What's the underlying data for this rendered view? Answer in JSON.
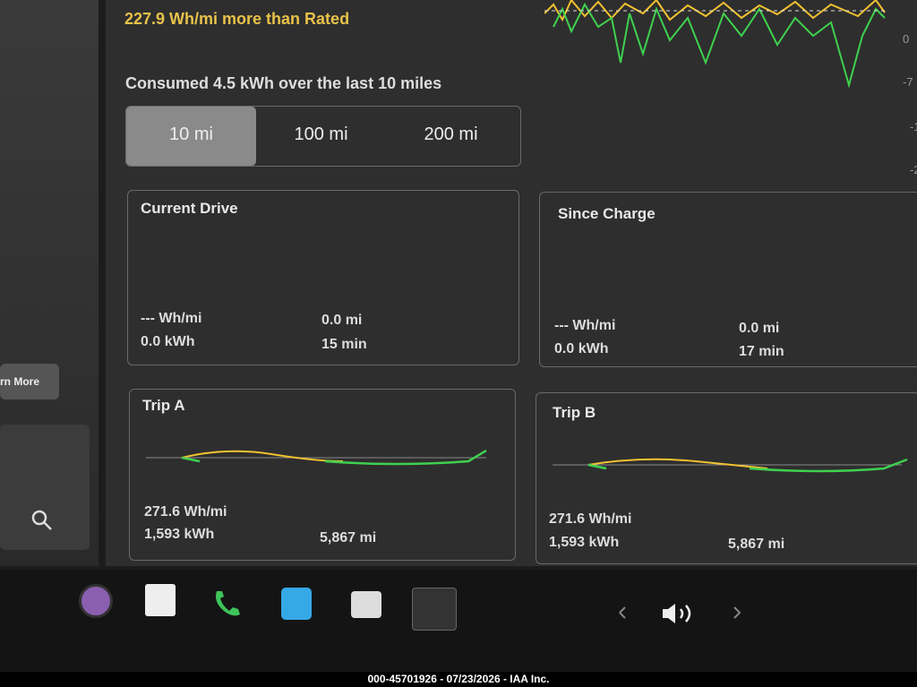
{
  "header": {
    "rated_delta": "227.9 Wh/mi more than Rated",
    "axis_labels": [
      "0",
      "-7",
      "-1,",
      "-2,"
    ]
  },
  "consumption": {
    "summary": "Consumed 4.5 kWh over the last 10 miles",
    "tabs": [
      "10 mi",
      "100 mi",
      "200 mi"
    ]
  },
  "cards": [
    {
      "title": "Current Drive",
      "efficiency": "--- Wh/mi",
      "energy": "0.0 kWh",
      "distance": "0.0 mi",
      "time": "15 min"
    },
    {
      "title": "Since Charge",
      "efficiency": "--- Wh/mi",
      "energy": "0.0 kWh",
      "distance": "0.0 mi",
      "time": "17 min"
    },
    {
      "title": "Trip A",
      "efficiency": "271.6 Wh/mi",
      "energy": "1,593 kWh",
      "distance": "5,867 mi"
    },
    {
      "title": "Trip B",
      "efficiency": "271.6 Wh/mi",
      "energy": "1,593 kWh",
      "distance": "5,867 mi"
    }
  ],
  "sidebar": {
    "button": "rn More"
  },
  "footer": {
    "watermark": "000-45701926 - 07/23/2026 - IAA Inc."
  }
}
